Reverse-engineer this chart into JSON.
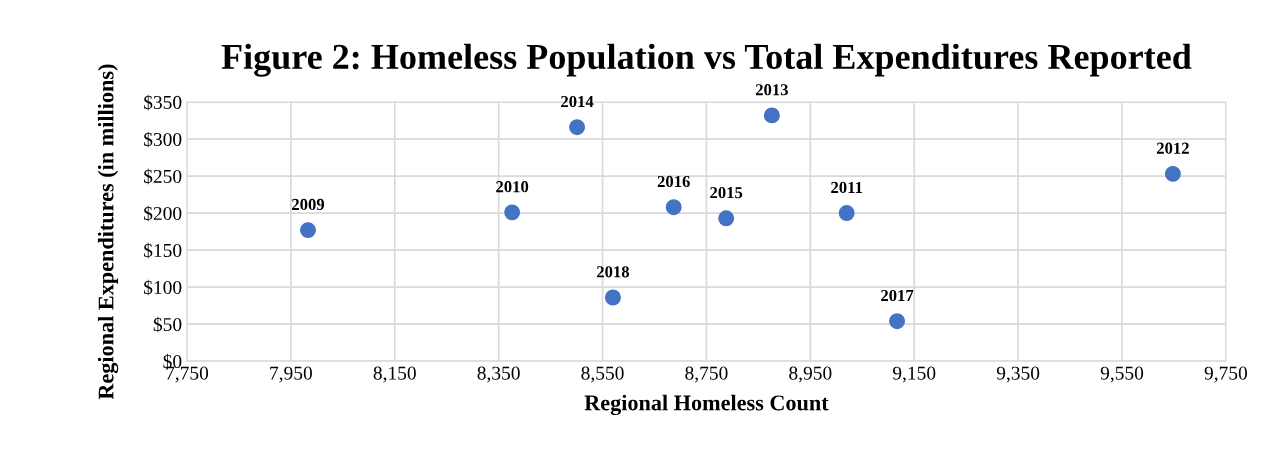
{
  "chart_data": {
    "type": "scatter",
    "title": "Figure 2: Homeless Population vs Total Expenditures Reported",
    "xlabel": "Regional Homeless Count",
    "ylabel": "Regional Expenditures (in millions)",
    "x": [
      7983,
      8376,
      9020,
      9648,
      8876,
      8501,
      8788,
      8687,
      9117,
      8570
    ],
    "series": [
      {
        "color": "#4472c4",
        "values": [
          177,
          201,
          200,
          253,
          332,
          316,
          193,
          208,
          54,
          86
        ]
      }
    ],
    "annotations": [
      {
        "text": "2009",
        "x": 7983,
        "y": 177
      },
      {
        "text": "2010",
        "x": 8376,
        "y": 201
      },
      {
        "text": "2011",
        "x": 9020,
        "y": 200
      },
      {
        "text": "2012",
        "x": 9648,
        "y": 253
      },
      {
        "text": "2013",
        "x": 8876,
        "y": 332
      },
      {
        "text": "2014",
        "x": 8501,
        "y": 316
      },
      {
        "text": "2015",
        "x": 8788,
        "y": 193
      },
      {
        "text": "2016",
        "x": 8687,
        "y": 208
      },
      {
        "text": "2017",
        "x": 9117,
        "y": 54
      },
      {
        "text": "2018",
        "x": 8570,
        "y": 86
      }
    ],
    "xlim": [
      7750,
      9750
    ],
    "xticks": [
      {
        "value": 7750,
        "label": "7,750"
      },
      {
        "value": 7950,
        "label": "7,950"
      },
      {
        "value": 8150,
        "label": "8,150"
      },
      {
        "value": 8350,
        "label": "8,350"
      },
      {
        "value": 8550,
        "label": "8,550"
      },
      {
        "value": 8750,
        "label": "8,750"
      },
      {
        "value": 8950,
        "label": "8,950"
      },
      {
        "value": 9150,
        "label": "9,150"
      },
      {
        "value": 9350,
        "label": "9,350"
      },
      {
        "value": 9550,
        "label": "9,550"
      },
      {
        "value": 9750,
        "label": "9,750"
      }
    ],
    "ylim": [
      0,
      350
    ],
    "yticks": [
      {
        "value": 0,
        "label": "$0"
      },
      {
        "value": 50,
        "label": "$50"
      },
      {
        "value": 100,
        "label": "$100"
      },
      {
        "value": 150,
        "label": "$150"
      },
      {
        "value": 200,
        "label": "$200"
      },
      {
        "value": 250,
        "label": "$250"
      },
      {
        "value": 300,
        "label": "$300"
      },
      {
        "value": 350,
        "label": "$350"
      }
    ],
    "grid": true,
    "marker": "circle"
  }
}
